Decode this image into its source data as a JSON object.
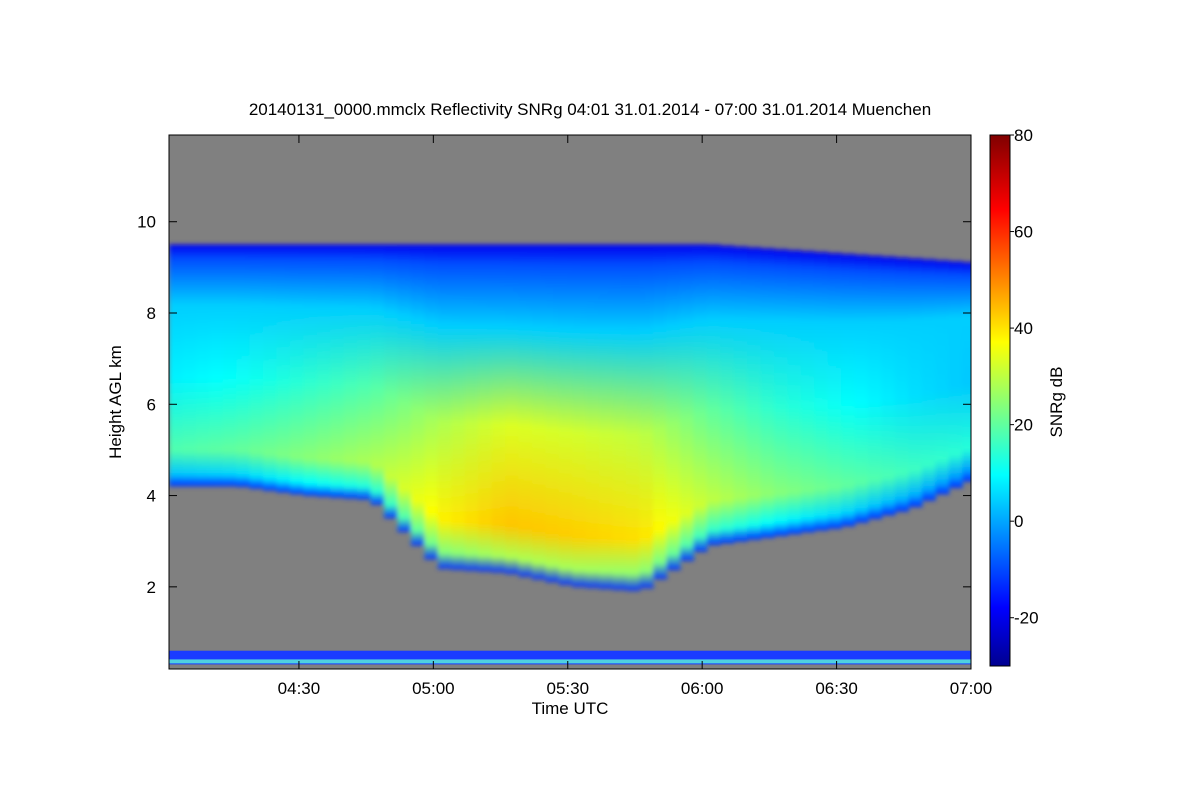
{
  "chart_data": {
    "type": "heatmap",
    "title": "20140131_0000.mmclx Reflectivity SNRg   04:01 31.01.2014 - 07:00 31.01.2014 Muenchen",
    "xlabel": "Time UTC",
    "ylabel": "Height AGL km",
    "colorbar_label": "SNRg dB",
    "xlim": [
      "04:01",
      "07:00"
    ],
    "ylim": [
      0.2,
      11.9
    ],
    "clim": [
      -30,
      80
    ],
    "x_ticks": [
      "04:30",
      "05:00",
      "05:30",
      "06:00",
      "06:30",
      "07:00"
    ],
    "y_ticks": [
      2,
      4,
      6,
      8,
      10
    ],
    "colorbar_ticks": [
      -20,
      0,
      20,
      40,
      60,
      80
    ],
    "colormap": "jet",
    "no_data_color": "#808080",
    "cloud": {
      "time": [
        "04:01",
        "04:15",
        "04:30",
        "04:45",
        "05:00",
        "05:15",
        "05:30",
        "05:45",
        "06:00",
        "06:15",
        "06:30",
        "06:45",
        "07:00"
      ],
      "top_km": [
        9.5,
        9.5,
        9.5,
        9.5,
        9.5,
        9.5,
        9.5,
        9.5,
        9.5,
        9.4,
        9.3,
        9.2,
        9.1
      ],
      "base_km": [
        4.2,
        4.2,
        4.0,
        3.9,
        2.4,
        2.3,
        2.0,
        1.9,
        2.9,
        3.1,
        3.3,
        3.7,
        4.4
      ],
      "peak_snr_db": [
        20,
        22,
        26,
        30,
        40,
        45,
        44,
        42,
        32,
        26,
        22,
        18,
        15
      ]
    },
    "ground_clutter_km": [
      0.3,
      0.6
    ],
    "grid": false,
    "legend": "colorbar-right"
  }
}
